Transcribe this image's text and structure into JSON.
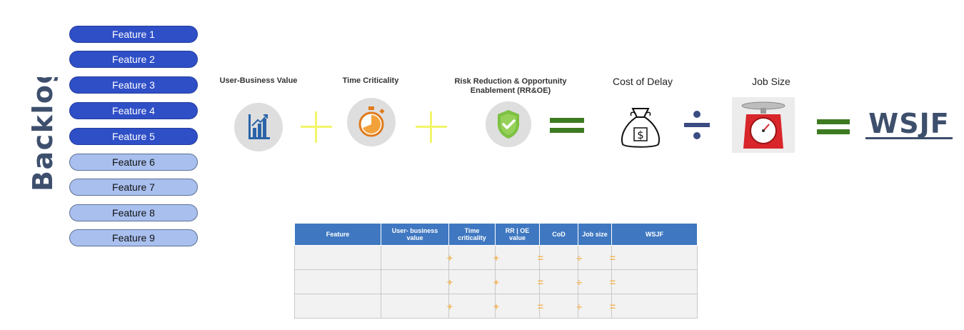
{
  "backlog": {
    "title": "Backlog",
    "features": [
      {
        "label": "Feature 1",
        "style": "dark"
      },
      {
        "label": "Feature 2",
        "style": "dark"
      },
      {
        "label": "Feature 3",
        "style": "dark"
      },
      {
        "label": "Feature 4",
        "style": "dark"
      },
      {
        "label": "Feature 5",
        "style": "dark"
      },
      {
        "label": "Feature 6",
        "style": "light"
      },
      {
        "label": "Feature 7",
        "style": "light"
      },
      {
        "label": "Feature 8",
        "style": "light"
      },
      {
        "label": "Feature 9",
        "style": "light"
      }
    ]
  },
  "formula": {
    "user_business_value": "User-Business Value",
    "time_criticality": "Time Criticality",
    "rroe_line1": "Risk Reduction & Opportunity",
    "rroe_line2": "Enablement (RR&OE)",
    "cost_of_delay": "Cost of Delay",
    "job_size": "Job Size",
    "result": "WSJF"
  },
  "table": {
    "headers": [
      "Feature",
      "User- business value",
      "Time criticality",
      "RR | OE value",
      "CoD",
      "Job size",
      "WSJF"
    ],
    "rows": [
      [
        "",
        "+",
        "+",
        "=",
        "÷",
        "="
      ],
      [
        "",
        "+",
        "+",
        "=",
        "÷",
        "="
      ],
      [
        "",
        "+",
        "+",
        "=",
        "÷",
        "="
      ]
    ]
  },
  "colors": {
    "feature_dark": "#2f4fc7",
    "feature_light": "#a9c0ef",
    "plus_sign": "#f2f56b",
    "equals_sign": "#3e7a22",
    "divide_sign": "#3b4c82",
    "table_header": "#3f78c1",
    "table_operator": "#f4b75a",
    "wsjf_text": "#3d4f6c"
  },
  "icons": [
    "bar-chart-icon",
    "stopwatch-icon",
    "shield-check-icon",
    "money-bag-icon",
    "weighing-scale-icon"
  ]
}
